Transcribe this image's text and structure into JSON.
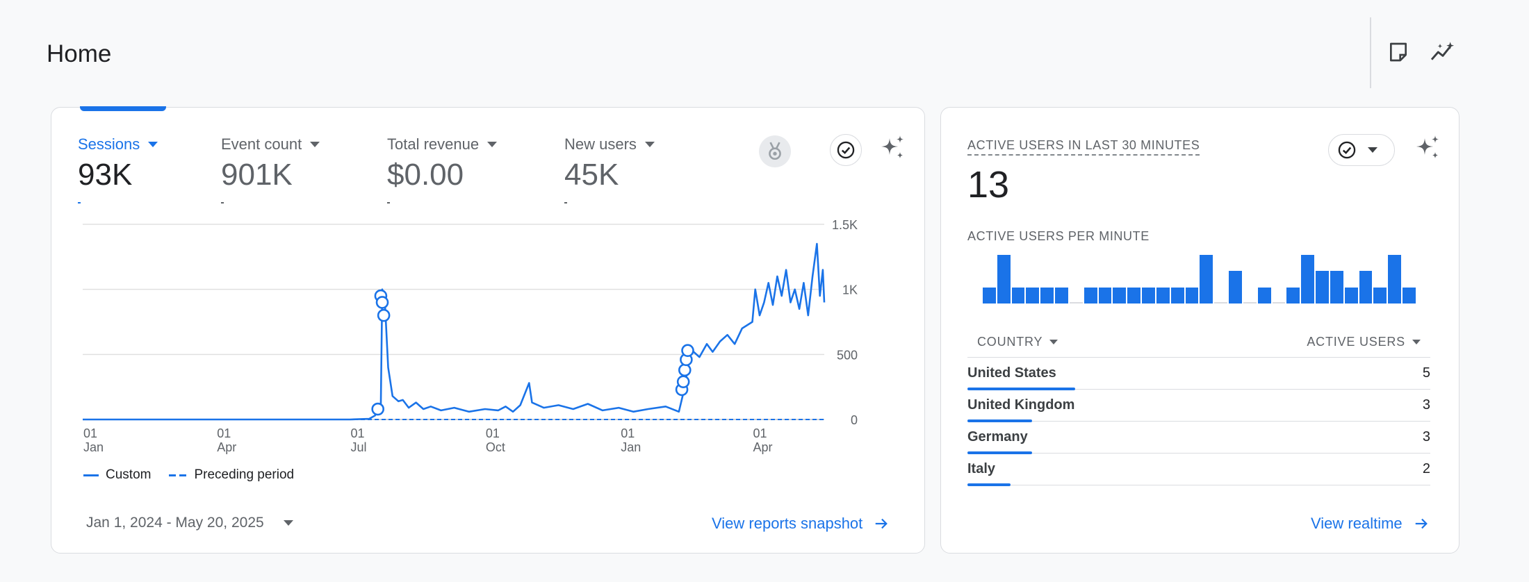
{
  "page": {
    "title": "Home"
  },
  "top_actions": [
    {
      "name": "notes-icon"
    },
    {
      "name": "insights-icon"
    }
  ],
  "main_card": {
    "metrics": [
      {
        "label": "Sessions",
        "value": "93K",
        "active": true
      },
      {
        "label": "Event count",
        "value": "901K",
        "active": false
      },
      {
        "label": "Total revenue",
        "value": "$0.00",
        "active": false
      },
      {
        "label": "New users",
        "value": "45K",
        "active": false
      }
    ],
    "legend": {
      "current": "Custom",
      "previous": "Preceding period"
    },
    "date_range": "Jan 1, 2024 - May 20, 2025",
    "link": "View reports snapshot"
  },
  "chart_data": {
    "type": "line",
    "y_ticks": [
      "1.5K",
      "1K",
      "500",
      "0"
    ],
    "ylim": [
      0,
      1500
    ],
    "x_ticks": [
      {
        "day": "01",
        "month": "Jan"
      },
      {
        "day": "01",
        "month": "Apr"
      },
      {
        "day": "01",
        "month": "Jul"
      },
      {
        "day": "01",
        "month": "Oct"
      },
      {
        "day": "01",
        "month": "Jan"
      },
      {
        "day": "01",
        "month": "Apr"
      }
    ],
    "series": [
      {
        "name": "Custom",
        "points": [
          [
            "2024-01-01",
            0
          ],
          [
            "2024-07-01",
            0
          ],
          [
            "2024-07-14",
            5
          ],
          [
            "2024-07-18",
            30
          ],
          [
            "2024-07-20",
            60
          ],
          [
            "2024-07-22",
            90
          ],
          [
            "2024-07-23",
            1000
          ],
          [
            "2024-07-24",
            950
          ],
          [
            "2024-07-25",
            850
          ],
          [
            "2024-07-27",
            400
          ],
          [
            "2024-07-30",
            180
          ],
          [
            "2024-08-03",
            140
          ],
          [
            "2024-08-06",
            150
          ],
          [
            "2024-08-10",
            90
          ],
          [
            "2024-08-15",
            130
          ],
          [
            "2024-08-20",
            80
          ],
          [
            "2024-08-25",
            100
          ],
          [
            "2024-09-01",
            70
          ],
          [
            "2024-09-10",
            90
          ],
          [
            "2024-09-20",
            60
          ],
          [
            "2024-10-01",
            80
          ],
          [
            "2024-10-10",
            70
          ],
          [
            "2024-10-15",
            100
          ],
          [
            "2024-10-20",
            60
          ],
          [
            "2024-10-25",
            110
          ],
          [
            "2024-10-31",
            280
          ],
          [
            "2024-11-02",
            130
          ],
          [
            "2024-11-10",
            90
          ],
          [
            "2024-11-20",
            110
          ],
          [
            "2024-11-30",
            80
          ],
          [
            "2024-12-10",
            120
          ],
          [
            "2024-12-20",
            70
          ],
          [
            "2024-12-31",
            90
          ],
          [
            "2025-01-10",
            60
          ],
          [
            "2025-01-20",
            80
          ],
          [
            "2025-02-01",
            100
          ],
          [
            "2025-02-10",
            60
          ],
          [
            "2025-02-14",
            250
          ],
          [
            "2025-02-15",
            320
          ],
          [
            "2025-02-16",
            400
          ],
          [
            "2025-02-17",
            480
          ],
          [
            "2025-02-18",
            560
          ],
          [
            "2025-02-20",
            520
          ],
          [
            "2025-02-24",
            480
          ],
          [
            "2025-03-01",
            580
          ],
          [
            "2025-03-05",
            520
          ],
          [
            "2025-03-10",
            600
          ],
          [
            "2025-03-15",
            650
          ],
          [
            "2025-03-20",
            580
          ],
          [
            "2025-03-25",
            700
          ],
          [
            "2025-04-01",
            750
          ],
          [
            "2025-04-03",
            1000
          ],
          [
            "2025-04-06",
            800
          ],
          [
            "2025-04-09",
            900
          ],
          [
            "2025-04-12",
            1050
          ],
          [
            "2025-04-15",
            880
          ],
          [
            "2025-04-18",
            1100
          ],
          [
            "2025-04-21",
            950
          ],
          [
            "2025-04-24",
            1150
          ],
          [
            "2025-04-27",
            900
          ],
          [
            "2025-04-30",
            1000
          ],
          [
            "2025-05-03",
            850
          ],
          [
            "2025-05-06",
            1050
          ],
          [
            "2025-05-09",
            800
          ],
          [
            "2025-05-12",
            1100
          ],
          [
            "2025-05-15",
            1350
          ],
          [
            "2025-05-17",
            950
          ],
          [
            "2025-05-19",
            1150
          ],
          [
            "2025-05-20",
            900
          ]
        ]
      },
      {
        "name": "Preceding period",
        "points": [
          [
            "2024-01-01",
            0
          ],
          [
            "2025-05-20",
            0
          ]
        ]
      }
    ],
    "markers": [
      [
        "2024-07-20",
        80
      ],
      [
        "2024-07-22",
        950
      ],
      [
        "2024-07-23",
        900
      ],
      [
        "2024-07-24",
        800
      ],
      [
        "2025-02-12",
        230
      ],
      [
        "2025-02-13",
        290
      ],
      [
        "2025-02-14",
        380
      ],
      [
        "2025-02-15",
        460
      ],
      [
        "2025-02-16",
        530
      ]
    ]
  },
  "side_card": {
    "title": "ACTIVE USERS IN LAST 30 MINUTES",
    "value": "13",
    "per_minute_title": "ACTIVE USERS PER MINUTE",
    "per_minute": [
      1,
      3,
      1,
      1,
      1,
      1,
      0,
      1,
      1,
      1,
      1,
      1,
      1,
      1,
      1,
      3,
      0,
      2,
      0,
      1,
      0,
      1,
      3,
      2,
      2,
      1,
      2,
      1,
      3,
      1
    ],
    "table_headers": {
      "country": "COUNTRY",
      "users": "ACTIVE USERS"
    },
    "rows": [
      {
        "country": "United States",
        "users": "5",
        "share": 1.0
      },
      {
        "country": "United Kingdom",
        "users": "3",
        "share": 0.6
      },
      {
        "country": "Germany",
        "users": "3",
        "share": 0.6
      },
      {
        "country": "Italy",
        "users": "2",
        "share": 0.4
      }
    ],
    "link": "View realtime"
  }
}
